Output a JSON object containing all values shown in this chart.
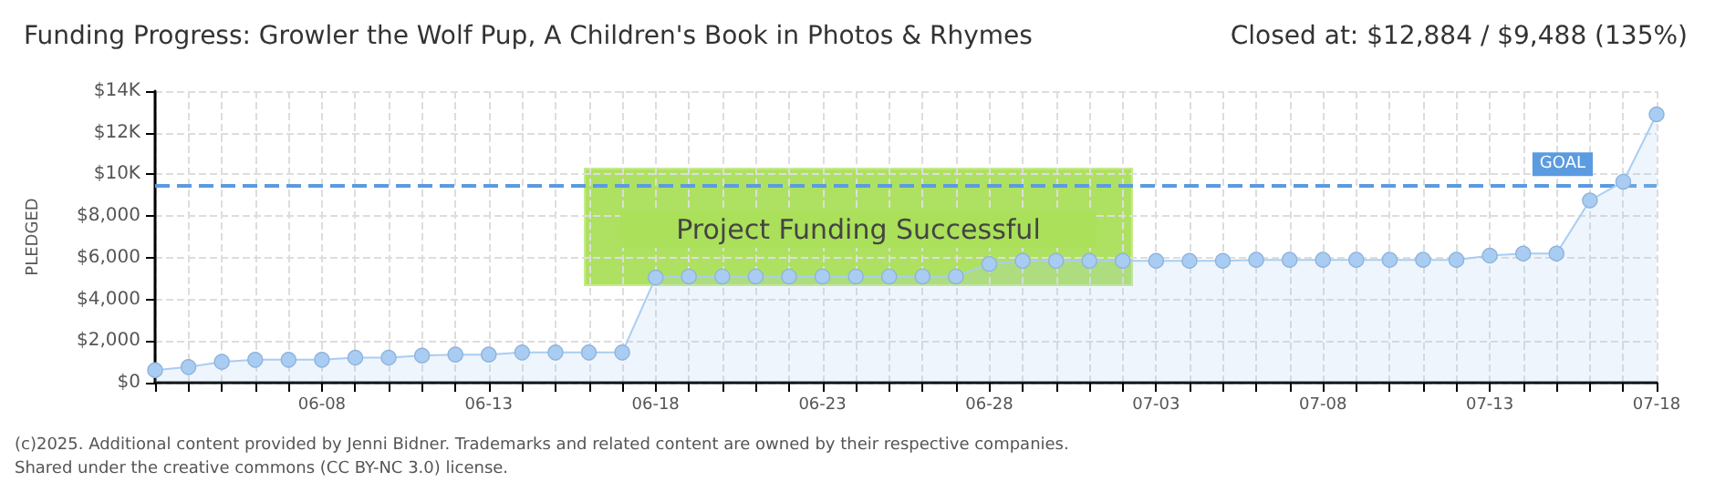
{
  "chart_data": {
    "type": "area",
    "title": "Funding Progress: Growler the Wolf Pup, A Children's Book in Photos & Rhymes",
    "subtitle": "Closed at: $12,884 / $9,488 (135%)",
    "ylabel": "PLEDGED",
    "categories": [
      null,
      null,
      null,
      null,
      null,
      "06-08",
      null,
      null,
      null,
      null,
      "06-13",
      null,
      null,
      null,
      null,
      "06-18",
      null,
      null,
      null,
      null,
      "06-23",
      null,
      null,
      null,
      null,
      "06-28",
      null,
      null,
      null,
      null,
      "07-03",
      null,
      null,
      null,
      null,
      "07-08",
      null,
      null,
      null,
      null,
      "07-13",
      null,
      null,
      null,
      null,
      "07-18"
    ],
    "series": [
      {
        "color": "#a9cdf2",
        "values": [
          600,
          750,
          1000,
          1100,
          1100,
          1100,
          1200,
          1200,
          1300,
          1350,
          1350,
          1450,
          1450,
          1450,
          1450,
          5050,
          5100,
          5100,
          5100,
          5100,
          5100,
          5100,
          5100,
          5100,
          5100,
          5700,
          5850,
          5850,
          5850,
          5850,
          5850,
          5850,
          5850,
          5900,
          5900,
          5900,
          5900,
          5900,
          5900,
          5900,
          6100,
          6200,
          6200,
          8750,
          9650,
          12884
        ]
      }
    ],
    "ylim": [
      0,
      14000
    ],
    "yticks": [
      {
        "value": 0,
        "label": "$0"
      },
      {
        "value": 2000,
        "label": "$2,000"
      },
      {
        "value": 4000,
        "label": "$4,000"
      },
      {
        "value": 6000,
        "label": "$6,000"
      },
      {
        "value": 8000,
        "label": "$8,000"
      },
      {
        "value": 10000,
        "label": "$10K"
      },
      {
        "value": 12000,
        "label": "$12K"
      },
      {
        "value": 14000,
        "label": "$14K"
      }
    ],
    "ref_lines": [
      {
        "axis": "y",
        "value": 9488,
        "label": "GOAL",
        "color": "#5b9be0",
        "line_style": "dashed"
      }
    ],
    "grid": true,
    "marker": "circle",
    "annotations": [
      "Project Funding Successful",
      "(c)2025. Additional content provided by Jenni Bidner. Trademarks and related content are owned by their respective companies.",
      "Shared under the creative commons (CC BY-NC 3.0) license."
    ]
  }
}
